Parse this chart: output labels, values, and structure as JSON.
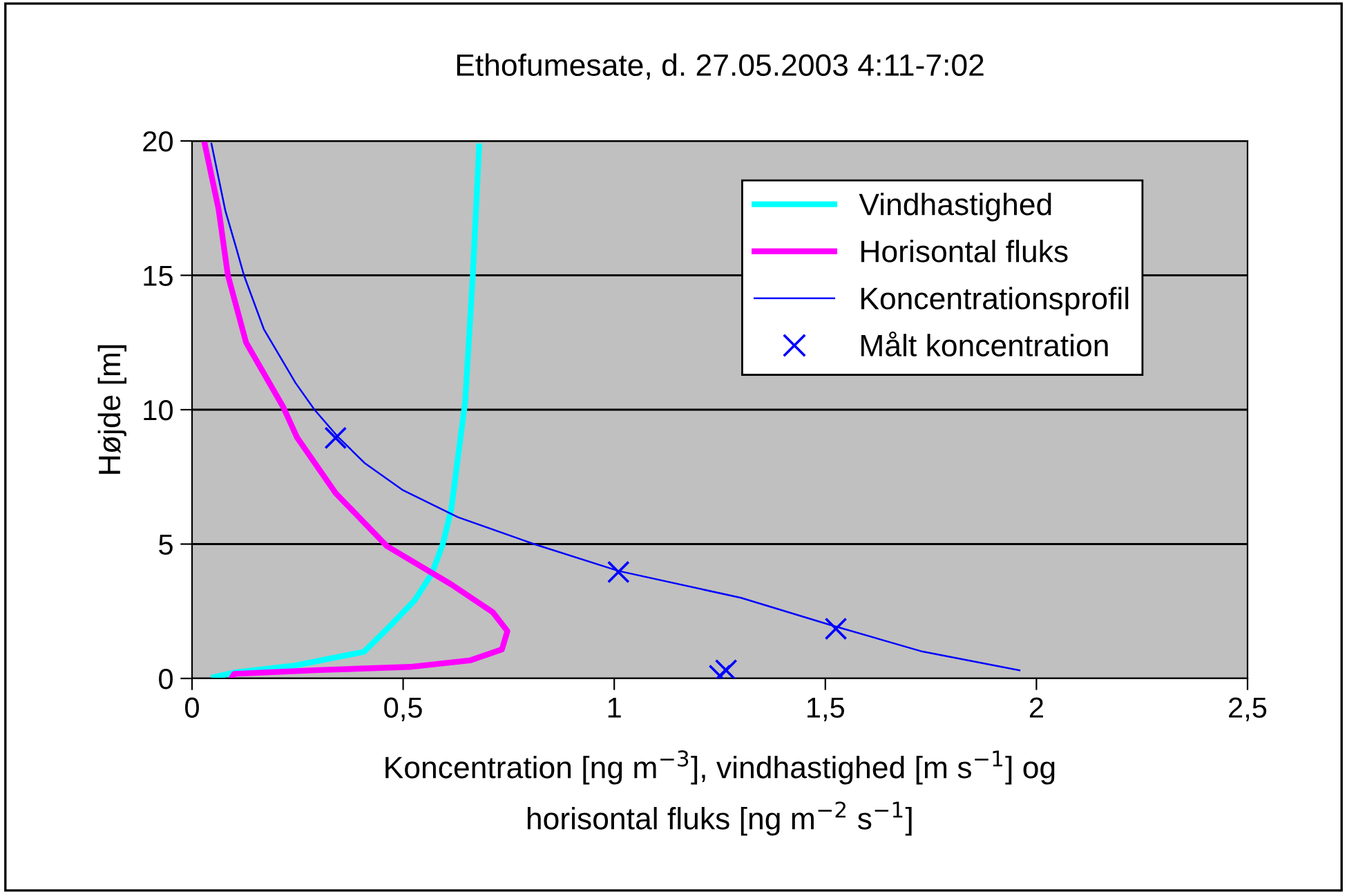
{
  "chart_data": {
    "type": "line",
    "title": "Ethofumesate, d. 27.05.2003 4:11-7:02",
    "xlabel": "Koncentration [ng m$^{−3}$], vindhastighed [m s$^{−1}$] og\nhorisontal fluks [ng m$^{−2}$ s$^{−1}$]",
    "ylabel": "Højde [m]",
    "series": [
      {
        "name": "Vindhastighed",
        "color": "#00ffff",
        "x": [
          0.052,
          0.1,
          0.243,
          0.407,
          0.472,
          0.527,
          0.568,
          0.594,
          0.614,
          0.647,
          0.665,
          0.68
        ],
        "values": [
          0.05,
          0.22,
          0.48,
          0.99,
          2.0,
          2.9,
          3.9,
          5.0,
          6.3,
          10.3,
          15.0,
          19.8
        ]
      },
      {
        "name": "Horisontal fluks",
        "color": "#ff00ff",
        "x": [
          0.095,
          0.1,
          0.3,
          0.516,
          0.658,
          0.734,
          0.747,
          0.712,
          0.614,
          0.461,
          0.34,
          0.249,
          0.216,
          0.128,
          0.085,
          0.063,
          0.03
        ],
        "values": [
          0.05,
          0.17,
          0.31,
          0.43,
          0.67,
          1.08,
          1.76,
          2.47,
          3.5,
          4.93,
          6.9,
          8.96,
          10.1,
          12.5,
          15.0,
          17.45,
          19.9
        ]
      },
      {
        "name": "Koncentrationsprofil",
        "color": "#0000ff",
        "x": [
          1.96,
          1.73,
          1.51,
          1.3,
          1.01,
          0.81,
          0.63,
          0.5,
          0.41,
          0.345,
          0.29,
          0.245,
          0.17,
          0.123,
          0.105,
          0.079,
          0.046
        ],
        "values": [
          0.3,
          1.0,
          2.0,
          3.0,
          4.0,
          5.0,
          6.0,
          7.0,
          8.0,
          9.0,
          10.0,
          11.0,
          13.0,
          15.0,
          16.0,
          17.4,
          19.9
        ]
      },
      {
        "name": "Målt koncentration",
        "type": "scatter",
        "marker": "cross",
        "color": "#0000ff",
        "x": [
          0.34,
          1.01,
          1.525,
          1.25,
          1.265
        ],
        "values": [
          8.95,
          3.96,
          1.85,
          0.1,
          0.3
        ]
      }
    ],
    "xlim": [
      0,
      2.5
    ],
    "ylim": [
      0,
      20
    ],
    "xticks": [
      0,
      {
        "value": 0.5,
        "label": "0,5"
      },
      1,
      {
        "value": 1.5,
        "label": "1,5"
      },
      2,
      {
        "value": 2.5,
        "label": "2,5"
      }
    ],
    "yticks": [
      0,
      5,
      10,
      15,
      20
    ],
    "grid": "y",
    "legend": "top right",
    "marker": "none"
  }
}
